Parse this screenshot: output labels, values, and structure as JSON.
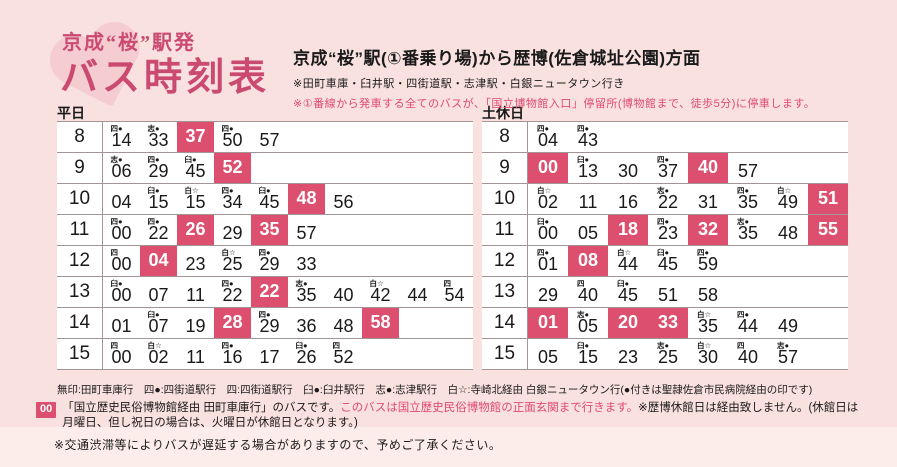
{
  "colors": {
    "bg": "#f9e1df",
    "bg_light": "#fcecea",
    "accent": "#cb4a70",
    "highlight": "#dc4f6e",
    "red_text": "#e04a72",
    "line": "#a39595",
    "heart": "#f5c9ce"
  },
  "brand": {
    "line1": "京成“桜”駅発",
    "line2": "バス時刻表"
  },
  "header": {
    "heading": "京成“桜”駅(①番乗り場)から歴博(佐倉城址公園)方面",
    "note1": "※田町車庫・臼井駅・四街道駅・志津駅・白銀ニュータウン行き",
    "note2": "※①番線から発車する全てのバスが、「国立博物館入口」停留所(博物館まで、徒歩5分)に停車します。"
  },
  "timetables": [
    {
      "label": "平日",
      "rows": [
        {
          "hour": "8",
          "cells": [
            {
              "m": "14",
              "mark": "四●"
            },
            {
              "m": "33",
              "mark": "志●"
            },
            {
              "m": "37",
              "hl": true
            },
            {
              "m": "50",
              "mark": "四●"
            },
            {
              "m": "57"
            }
          ]
        },
        {
          "hour": "9",
          "cells": [
            {
              "m": "06",
              "mark": "志●"
            },
            {
              "m": "29",
              "mark": "四●"
            },
            {
              "m": "45",
              "mark": "臼●"
            },
            {
              "m": "52",
              "hl": true
            }
          ]
        },
        {
          "hour": "10",
          "cells": [
            {
              "m": "04"
            },
            {
              "m": "15",
              "mark": "臼●"
            },
            {
              "m": "15",
              "mark": "白☆"
            },
            {
              "m": "34",
              "mark": "四●"
            },
            {
              "m": "45",
              "mark": "臼●"
            },
            {
              "m": "48",
              "hl": true
            },
            {
              "m": "56"
            }
          ]
        },
        {
          "hour": "11",
          "cells": [
            {
              "m": "00",
              "mark": "四●"
            },
            {
              "m": "22",
              "mark": "四●"
            },
            {
              "m": "26",
              "hl": true
            },
            {
              "m": "29"
            },
            {
              "m": "35",
              "hl": true
            },
            {
              "m": "57"
            }
          ]
        },
        {
          "hour": "12",
          "cells": [
            {
              "m": "00",
              "mark": "四"
            },
            {
              "m": "04",
              "hl": true
            },
            {
              "m": "23"
            },
            {
              "m": "25",
              "mark": "白☆"
            },
            {
              "m": "29",
              "mark": "四●"
            },
            {
              "m": "33"
            }
          ]
        },
        {
          "hour": "13",
          "cells": [
            {
              "m": "00",
              "mark": "臼●"
            },
            {
              "m": "07"
            },
            {
              "m": "11"
            },
            {
              "m": "22",
              "mark": "四●"
            },
            {
              "m": "22",
              "hl": true
            },
            {
              "m": "35",
              "mark": "志●"
            },
            {
              "m": "40"
            },
            {
              "m": "42",
              "mark": "白☆"
            },
            {
              "m": "44"
            },
            {
              "m": "54",
              "mark": "四"
            }
          ]
        },
        {
          "hour": "14",
          "cells": [
            {
              "m": "01"
            },
            {
              "m": "07",
              "mark": "臼●"
            },
            {
              "m": "19"
            },
            {
              "m": "28",
              "hl": true
            },
            {
              "m": "29",
              "mark": "四●"
            },
            {
              "m": "36"
            },
            {
              "m": "48"
            },
            {
              "m": "58",
              "hl": true
            }
          ]
        },
        {
          "hour": "15",
          "cells": [
            {
              "m": "00",
              "mark": "四"
            },
            {
              "m": "02",
              "mark": "白☆"
            },
            {
              "m": "11"
            },
            {
              "m": "16",
              "mark": "四●"
            },
            {
              "m": "17"
            },
            {
              "m": "26",
              "mark": "臼●"
            },
            {
              "m": "52",
              "mark": "四"
            }
          ]
        }
      ]
    },
    {
      "label": "土休日",
      "rows": [
        {
          "hour": "8",
          "cells": [
            {
              "m": "04",
              "mark": "四●"
            },
            {
              "m": "43",
              "mark": "四●"
            }
          ]
        },
        {
          "hour": "9",
          "cells": [
            {
              "m": "00",
              "hl": true
            },
            {
              "m": "13",
              "mark": "臼●"
            },
            {
              "m": "30"
            },
            {
              "m": "37",
              "mark": "四●"
            },
            {
              "m": "40",
              "hl": true
            },
            {
              "m": "57"
            }
          ]
        },
        {
          "hour": "10",
          "cells": [
            {
              "m": "02",
              "mark": "白☆"
            },
            {
              "m": "11"
            },
            {
              "m": "16"
            },
            {
              "m": "22",
              "mark": "志●"
            },
            {
              "m": "31"
            },
            {
              "m": "35",
              "mark": "四●"
            },
            {
              "m": "49",
              "mark": "白☆"
            },
            {
              "m": "51",
              "hl": true
            }
          ]
        },
        {
          "hour": "11",
          "cells": [
            {
              "m": "00",
              "mark": "臼●"
            },
            {
              "m": "05"
            },
            {
              "m": "18",
              "hl": true
            },
            {
              "m": "23",
              "mark": "四●"
            },
            {
              "m": "32",
              "hl": true
            },
            {
              "m": "35",
              "mark": "志●"
            },
            {
              "m": "48"
            },
            {
              "m": "55",
              "hl": true
            }
          ]
        },
        {
          "hour": "12",
          "cells": [
            {
              "m": "01",
              "mark": "四●"
            },
            {
              "m": "08",
              "hl": true
            },
            {
              "m": "44",
              "mark": "白☆"
            },
            {
              "m": "45",
              "mark": "臼●"
            },
            {
              "m": "59",
              "mark": "四●"
            }
          ]
        },
        {
          "hour": "13",
          "cells": [
            {
              "m": "29"
            },
            {
              "m": "40",
              "mark": "四"
            },
            {
              "m": "45",
              "mark": "臼●"
            },
            {
              "m": "51"
            },
            {
              "m": "58"
            }
          ]
        },
        {
          "hour": "14",
          "cells": [
            {
              "m": "01",
              "hl": true
            },
            {
              "m": "05",
              "mark": "志●"
            },
            {
              "m": "20",
              "hl": true
            },
            {
              "m": "33",
              "hl": true
            },
            {
              "m": "35",
              "mark": "白☆"
            },
            {
              "m": "44",
              "mark": "四●"
            },
            {
              "m": "49"
            }
          ]
        },
        {
          "hour": "15",
          "cells": [
            {
              "m": "05"
            },
            {
              "m": "15",
              "mark": "臼●"
            },
            {
              "m": "23"
            },
            {
              "m": "25",
              "mark": "志●"
            },
            {
              "m": "30",
              "mark": "白☆"
            },
            {
              "m": "40",
              "mark": "四"
            },
            {
              "m": "57",
              "mark": "志●"
            }
          ]
        }
      ]
    }
  ],
  "legend": "無印:田町車庫行　四●:四街道駅行　四:四街道駅行　臼●:臼井駅行　志●:志津駅行　白☆:寺崎北経由 白銀ニュータウン行(●付きは聖隷佐倉市民病院経由の印です)",
  "notes": {
    "badge": "00",
    "line1_black": "「国立歴史民俗博物館経由 田町車庫行」のバスです。",
    "line1_red": "このバスは国立歴史民俗博物館の正面玄関まで行きます。",
    "line1_black2": "※歴博休館日は経由致しません。(休館日は月曜日、但し祝日の場合は、火曜日が休館日となります。)",
    "bottom": "※交通渋滞等によりバスが遅延する場合がありますので、予めご了承ください。"
  }
}
